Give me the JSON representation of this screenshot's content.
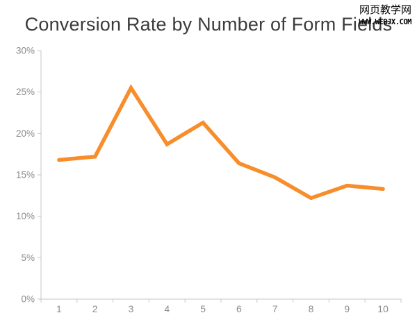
{
  "title": "Conversion Rate by Number of Form Fields",
  "watermark": {
    "line1": "网页教学网",
    "line2": "www.webjx.com"
  },
  "colors": {
    "line": "#F78E2B",
    "axis": "#C6C6C6",
    "tick_label": "#8C8C8C",
    "title_text": "#3B3B3B",
    "watermark_text": "#000000"
  },
  "chart_data": {
    "type": "line",
    "title": "Conversion Rate by Number of Form Fields",
    "categories": [
      "1",
      "2",
      "3",
      "4",
      "5",
      "6",
      "7",
      "8",
      "9",
      "10"
    ],
    "series": [
      {
        "name": "Conversion Rate",
        "values": [
          16.8,
          17.2,
          25.5,
          18.7,
          21.3,
          16.4,
          14.7,
          12.2,
          13.7,
          13.3
        ]
      }
    ],
    "xlabel": "",
    "ylabel": "",
    "ylim": [
      0,
      30
    ],
    "ytick_step": 5,
    "ytick_labels": [
      "0%",
      "5%",
      "10%",
      "15%",
      "20%",
      "25%",
      "30%"
    ],
    "grid": false,
    "legend": false
  }
}
